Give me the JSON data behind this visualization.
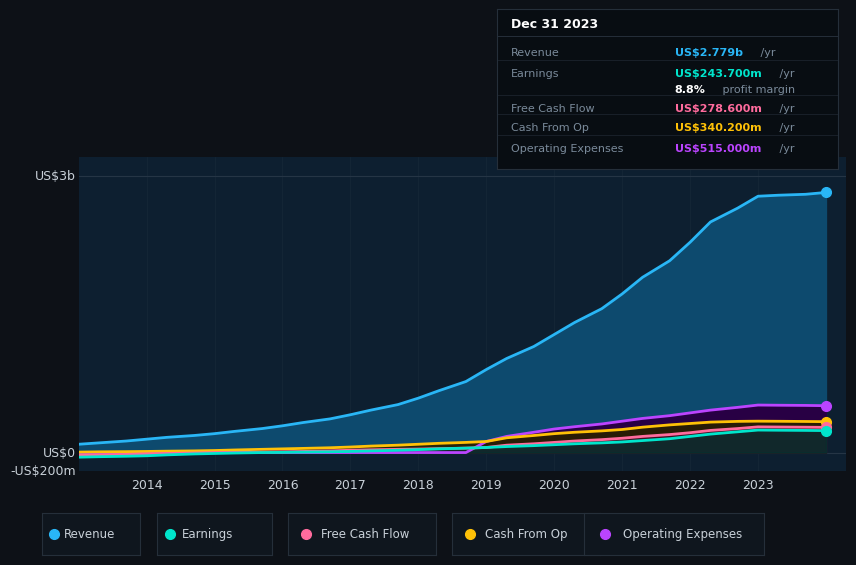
{
  "bg_color": "#0d1117",
  "plot_bg_color": "#0d1f30",
  "years": [
    2013.0,
    2013.3,
    2013.7,
    2014.0,
    2014.3,
    2014.7,
    2015.0,
    2015.3,
    2015.7,
    2016.0,
    2016.3,
    2016.7,
    2017.0,
    2017.3,
    2017.7,
    2018.0,
    2018.3,
    2018.7,
    2019.0,
    2019.3,
    2019.7,
    2020.0,
    2020.3,
    2020.7,
    2021.0,
    2021.3,
    2021.7,
    2022.0,
    2022.3,
    2022.7,
    2023.0,
    2023.3,
    2023.7,
    2024.0
  ],
  "revenue": [
    90,
    105,
    125,
    145,
    165,
    185,
    205,
    230,
    260,
    290,
    325,
    365,
    410,
    460,
    520,
    590,
    670,
    770,
    900,
    1020,
    1150,
    1280,
    1410,
    1560,
    1720,
    1900,
    2080,
    2280,
    2500,
    2650,
    2779,
    2790,
    2800,
    2820
  ],
  "earnings": [
    -50,
    -45,
    -40,
    -35,
    -25,
    -15,
    -10,
    -5,
    0,
    2,
    5,
    8,
    12,
    18,
    25,
    32,
    40,
    48,
    55,
    65,
    75,
    85,
    95,
    105,
    115,
    130,
    150,
    175,
    200,
    225,
    243.7,
    242,
    240,
    238
  ],
  "free_cash_flow": [
    -30,
    -25,
    -20,
    -15,
    -10,
    -5,
    0,
    2,
    5,
    8,
    12,
    18,
    25,
    30,
    35,
    38,
    42,
    48,
    55,
    80,
    95,
    110,
    125,
    140,
    155,
    175,
    195,
    215,
    240,
    260,
    278.6,
    277,
    275,
    273
  ],
  "cash_from_op": [
    5,
    8,
    10,
    12,
    15,
    18,
    22,
    28,
    35,
    40,
    45,
    52,
    60,
    70,
    80,
    90,
    100,
    110,
    120,
    160,
    185,
    205,
    220,
    235,
    250,
    275,
    300,
    315,
    330,
    338,
    340.2,
    339,
    337,
    335
  ],
  "operating_expenses": [
    0,
    0,
    0,
    0,
    0,
    0,
    0,
    0,
    0,
    0,
    0,
    0,
    0,
    0,
    0,
    0,
    0,
    0,
    120,
    175,
    220,
    255,
    280,
    310,
    340,
    370,
    400,
    430,
    460,
    490,
    515,
    513,
    511,
    508
  ],
  "ylim": [
    -200,
    3200
  ],
  "ytick_positions": [
    -200,
    0,
    3000
  ],
  "ytick_labels": [
    "-US$200m",
    "US$0",
    "US$3b"
  ],
  "xticks": [
    2014,
    2015,
    2016,
    2017,
    2018,
    2019,
    2020,
    2021,
    2022,
    2023
  ],
  "revenue_color": "#29b6f6",
  "revenue_fill": "#0d4a6e",
  "earnings_color": "#00e5cc",
  "earnings_fill": "#003330",
  "free_cash_flow_color": "#ff6b9d",
  "free_cash_flow_fill": "#3d1025",
  "cash_from_op_color": "#ffc107",
  "cash_from_op_fill": "#2a2000",
  "operating_expenses_color": "#bb44ff",
  "operating_expenses_fill": "#280044",
  "grid_color": "#253545",
  "text_color": "#c8d0d8",
  "label_color": "#7a8a9a",
  "tooltip_bg": "#080d12",
  "tooltip_border": "#252f3a",
  "marker_size": 7,
  "line_width": 2.0,
  "legend_bg": "#0f161e",
  "legend_border": "#252f3a"
}
